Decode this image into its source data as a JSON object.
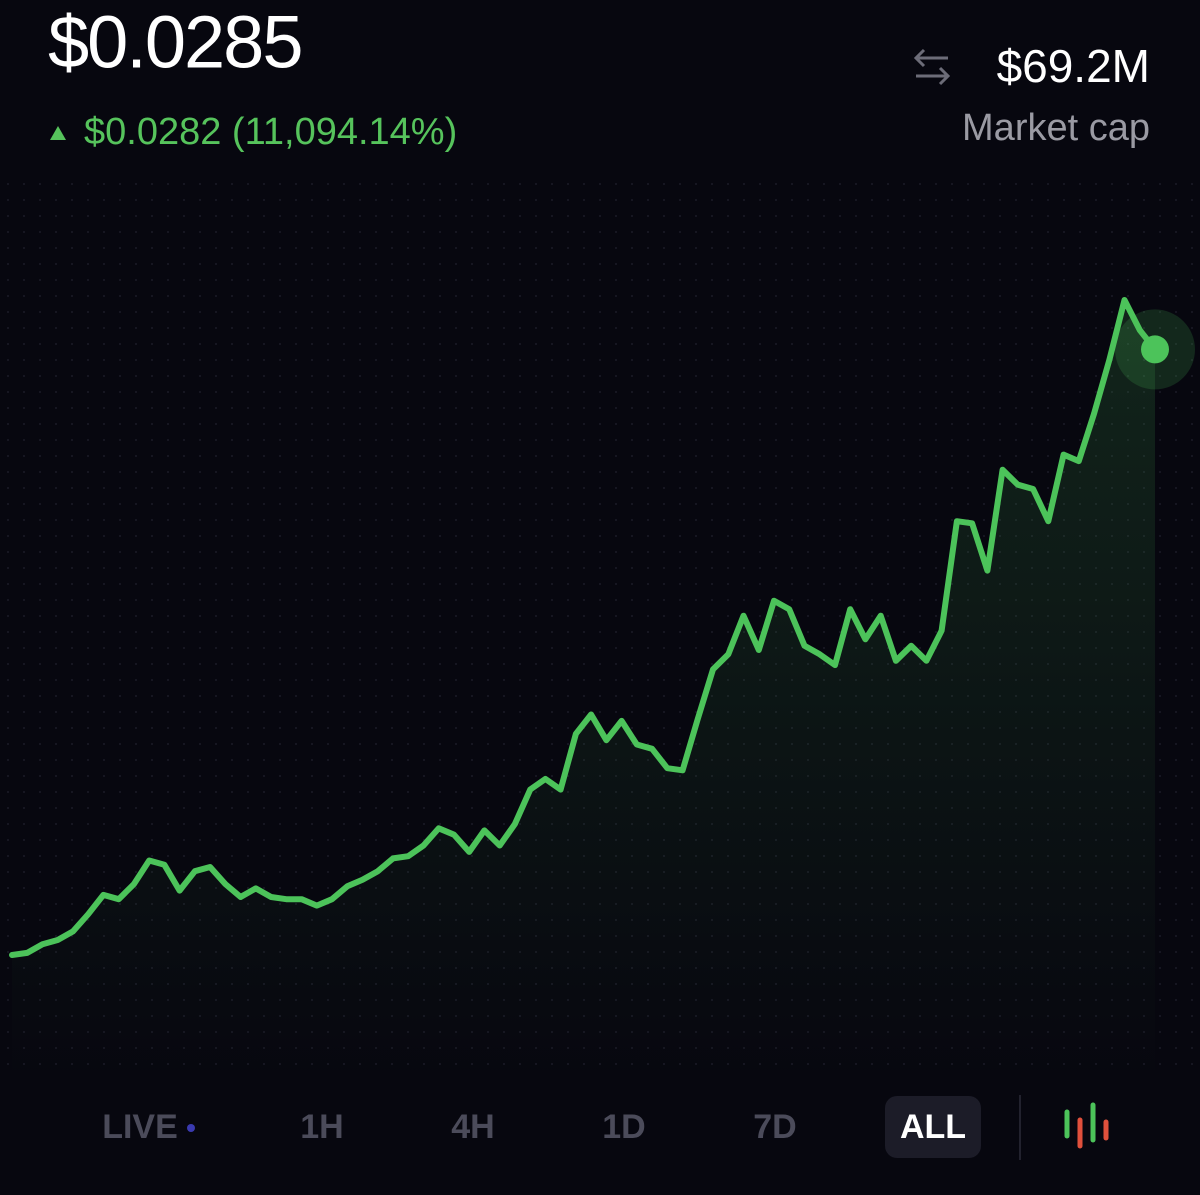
{
  "header": {
    "price": "$0.0285",
    "change": "$0.0282 (11,094.14%)",
    "market_cap_value": "$69.2M",
    "market_cap_label": "Market cap"
  },
  "chart_data": {
    "type": "line",
    "color": "#4cc35a",
    "values": [
      0.0003,
      0.0004,
      0.0008,
      0.001,
      0.0014,
      0.0022,
      0.0031,
      0.0029,
      0.0036,
      0.0047,
      0.0045,
      0.0033,
      0.0042,
      0.0044,
      0.0036,
      0.003,
      0.0034,
      0.003,
      0.0029,
      0.0029,
      0.0026,
      0.0029,
      0.0035,
      0.0038,
      0.0042,
      0.0048,
      0.0049,
      0.0054,
      0.0062,
      0.0059,
      0.0051,
      0.0061,
      0.0054,
      0.0064,
      0.008,
      0.0085,
      0.008,
      0.0106,
      0.0115,
      0.0103,
      0.0112,
      0.0101,
      0.0099,
      0.009,
      0.0089,
      0.0113,
      0.0136,
      0.0143,
      0.0161,
      0.0145,
      0.0168,
      0.0164,
      0.0147,
      0.0143,
      0.0138,
      0.0164,
      0.015,
      0.0161,
      0.014,
      0.0147,
      0.014,
      0.0154,
      0.0205,
      0.0204,
      0.0182,
      0.0229,
      0.0222,
      0.022,
      0.0205,
      0.0236,
      0.0233,
      0.0255,
      0.028,
      0.0308,
      0.0294,
      0.0285
    ]
  },
  "tabs": [
    "LIVE",
    "1H",
    "4H",
    "1D",
    "7D",
    "ALL"
  ]
}
